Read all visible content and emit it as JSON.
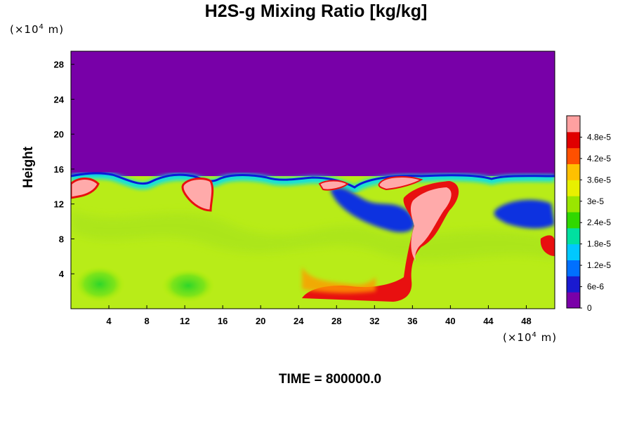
{
  "chart_data": {
    "type": "heatmap",
    "title": "H2S-g Mixing Ratio [kg/kg]",
    "xlabel": "",
    "ylabel": "Height",
    "x_unit_prefix": "(×10",
    "x_unit_exp": "4",
    "x_unit_suffix": " m)",
    "y_unit_prefix": "(×10",
    "y_unit_exp": "4",
    "y_unit_suffix": " m)",
    "xlim": [
      0,
      51
    ],
    "ylim": [
      0,
      29.5
    ],
    "x_ticks": [
      4,
      8,
      12,
      16,
      20,
      24,
      28,
      32,
      36,
      40,
      44,
      48
    ],
    "x_tick_labels": [
      "4",
      "8",
      "12",
      "16",
      "20",
      "24",
      "28",
      "32",
      "36",
      "40",
      "44",
      "48"
    ],
    "y_ticks": [
      4,
      8,
      12,
      16,
      20,
      24,
      28
    ],
    "y_tick_labels": [
      "4",
      "8",
      "12",
      "16",
      "20",
      "24",
      "28"
    ],
    "colorbar": {
      "min": 0,
      "max": 5.4e-05,
      "ticks": [
        0,
        6e-06,
        1.2e-05,
        1.8e-05,
        2.4e-05,
        3e-05,
        3.6e-05,
        4.2e-05,
        4.8e-05
      ],
      "tick_labels": [
        "0",
        "6e-6",
        "1.2e-5",
        "1.8e-5",
        "2.4e-5",
        "3e-5",
        "3.6e-5",
        "4.2e-5",
        "4.8e-5"
      ],
      "colors": [
        "#7a00a8",
        "#1a1ad0",
        "#0070ff",
        "#00c8ff",
        "#00e0a0",
        "#30d800",
        "#9ae600",
        "#e8f000",
        "#ffc000",
        "#ff5000",
        "#e00000",
        "#ffa0a0"
      ]
    },
    "field_description_levels": {
      "upper_region_value": 0,
      "lower_region_value": 3.4e-05,
      "interface_height": 15
    },
    "time_label": "TIME = 800000.0"
  }
}
